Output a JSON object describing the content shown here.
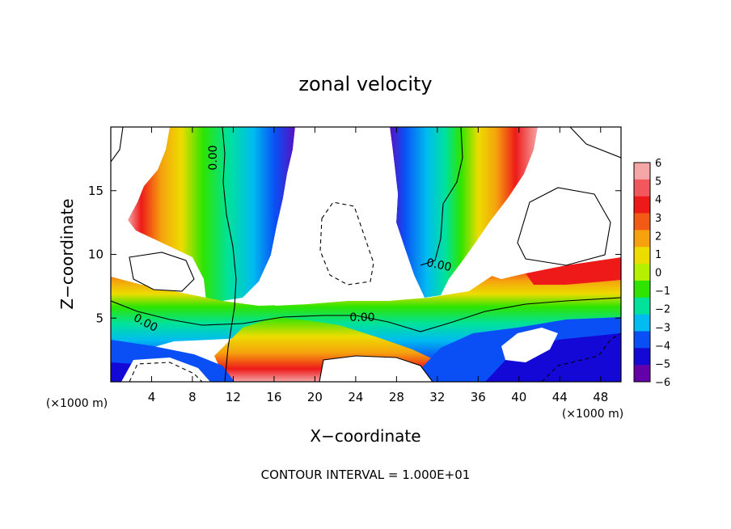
{
  "chart_data": {
    "type": "heatmap",
    "title": "zonal velocity",
    "xlabel": "X−coordinate",
    "ylabel": "Z−coordinate",
    "x_unit_left": "(×1000 m)",
    "x_unit_right": "(×1000 m)",
    "xlim": [
      0,
      50
    ],
    "ylim": [
      0,
      20
    ],
    "x_ticks": [
      4,
      8,
      12,
      16,
      20,
      24,
      28,
      32,
      36,
      40,
      44,
      48
    ],
    "x_tick_labels": [
      "4",
      "8",
      "12",
      "16",
      "20",
      "24",
      "28",
      "32",
      "36",
      "40",
      "44",
      "48"
    ],
    "y_ticks": [
      5,
      10,
      15
    ],
    "y_tick_labels": [
      "5",
      "10",
      "15"
    ],
    "colorbar": {
      "min": -6,
      "max": 6,
      "tick_values": [
        6,
        5,
        4,
        3,
        2,
        1,
        0,
        -1,
        -2,
        -3,
        -4,
        -5,
        -6
      ],
      "tick_labels": [
        "6",
        "5",
        "4",
        "3",
        "2",
        "1",
        "0",
        "−1",
        "−2",
        "−3",
        "−4",
        "−5",
        "−6"
      ],
      "colors": [
        "#f4a6a6",
        "#f2575d",
        "#ee1a1a",
        "#f25a16",
        "#f5a20e",
        "#eddc00",
        "#b4f000",
        "#2ee400",
        "#00e29a",
        "#00bcf0",
        "#0a4ff5",
        "#1408d6",
        "#6400aa"
      ]
    },
    "contour_labels": [
      "0.00",
      "0.00",
      "0.00",
      "0.00"
    ],
    "footer": "CONTOUR INTERVAL = 1.000E+01"
  }
}
